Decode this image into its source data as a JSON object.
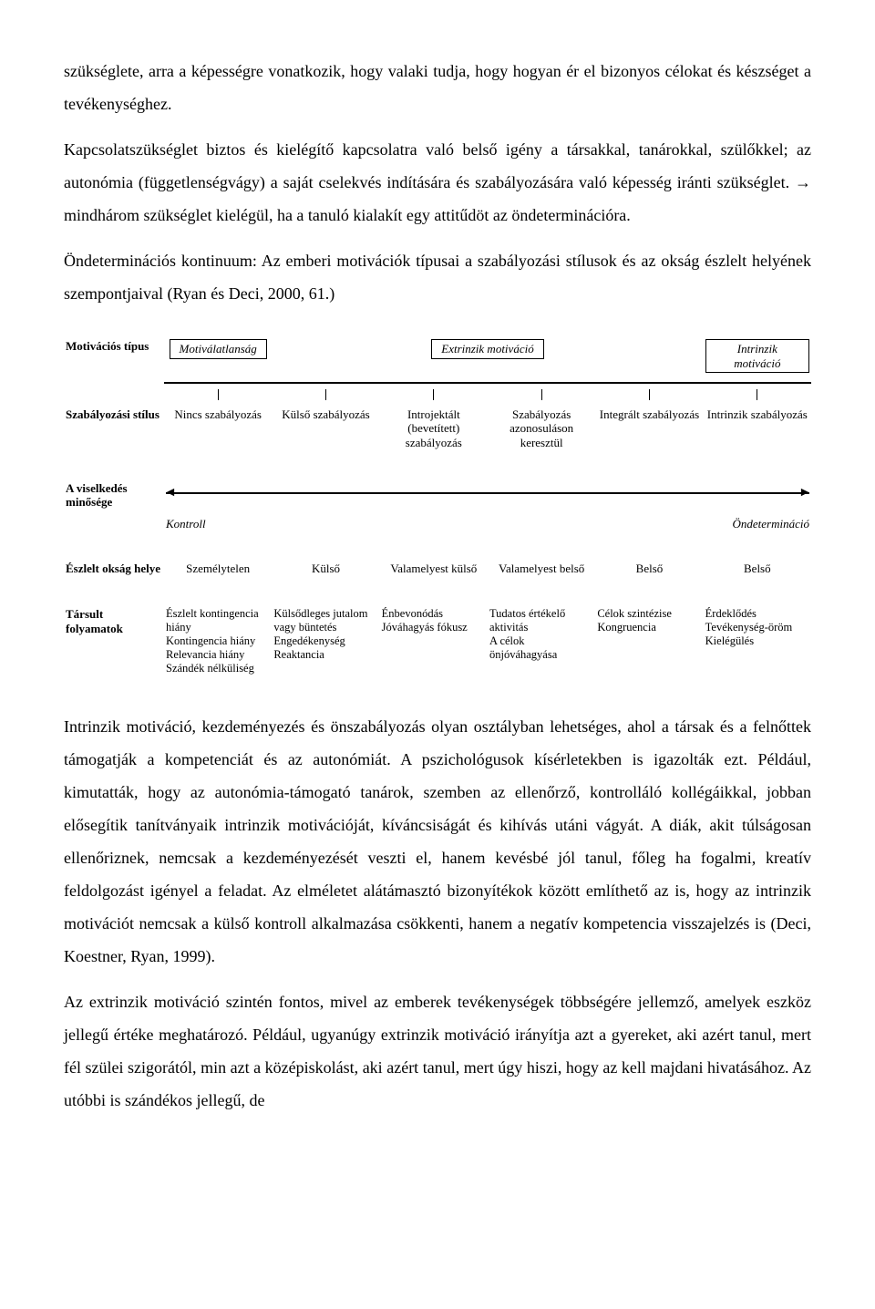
{
  "para1_part1": "szükséglete, arra a képességre vonatkozik, hogy valaki tudja, hogy hogyan ér el bizonyos célokat és készséget a tevékenységhez.",
  "para2": "Kapcsolatszükséglet biztos és kielégítő kapcsolatra való belső igény a társakkal, tanárokkal, szülőkkel; az autonómia (függetlenségvágy) a saját cselekvés indítására és szabályozására való képesség iránti szükséglet. → mindhárom szükséglet kielégül, ha a tanuló kialakít egy attitűdöt az öndeterminációra.",
  "para3": "Öndeterminációs kontinuum: Az emberi motivációk típusai a szabályozási stílusok és az okság észlelt helyének szempontjaival (Ryan és Deci, 2000, 61.)",
  "diagram": {
    "row_motiv_label": "Motivációs típus",
    "motiv_types": [
      "Motiválatlanság",
      "Extrinzik motiváció",
      "Intrinzik motiváció"
    ],
    "row_reg_label": "Szabályozási stílus",
    "reg_styles": [
      "Nincs szabályozás",
      "Külső szabályozás",
      "Introjektált (bevetített) szabályozás",
      "Szabályozás azonosuláson keresztül",
      "Integrált szabályozás",
      "Intrinzik szabályozás"
    ],
    "row_quality_label": "A viselkedés minősége",
    "kontroll": "Kontroll",
    "ondet": "Öndetermináció",
    "row_locus_label": "Észlelt okság helye",
    "locus": [
      "Személytelen",
      "Külső",
      "Valamelyest külső",
      "Valamelyest belső",
      "Belső",
      "Belső"
    ],
    "row_assoc_label": "Társult folyamatok",
    "assoc": [
      "Észlelt kontingencia hiány\nKontingencia hiány\nRelevancia hiány\nSzándék nélküliség",
      "Külsődleges jutalom vagy büntetés\nEngedékenység\nReaktancia",
      "Énbevonódás\nJóváhagyás fókusz",
      "Tudatos értékelő aktivitás\nA célok önjóváhagyása",
      "Célok szintézise\nKongruencia",
      "Érdeklődés\nTevékenység-öröm\nKielégülés"
    ]
  },
  "para4": "Intrinzik motiváció, kezdeményezés és önszabályozás olyan osztályban lehetséges, ahol a társak és a felnőttek támogatják a kompetenciát és az autonómiát. A pszichológusok kísérletekben is igazolták ezt. Például, kimutatták, hogy az autonómia-támogató tanárok, szemben az ellenőrző, kontrolláló kollégáikkal, jobban elősegítik tanítványaik intrinzik motivációját, kíváncsiságát és kihívás utáni vágyát. A diák, akit túlságosan ellenőriznek, nemcsak a kezdeményezését veszti el, hanem kevésbé jól tanul, főleg ha fogalmi, kreatív feldolgozást igényel a feladat. Az elméletet alátámasztó bizonyítékok között említhető az is, hogy az intrinzik motivációt nemcsak a külső kontroll alkalmazása csökkenti, hanem a negatív kompetencia visszajelzés is (Deci, Koestner, Ryan, 1999).",
  "para5": "Az extrinzik motiváció szintén fontos, mivel az emberek tevékenységek többségére jellemző, amelyek eszköz jellegű értéke meghatározó. Például, ugyanúgy extrinzik motiváció irányítja azt a gyereket, aki azért tanul, mert fél szülei szigorától, min azt a középiskolást, aki azért tanul, mert úgy hiszi, hogy az kell majdani hivatásához. Az utóbbi is szándékos jellegű, de"
}
